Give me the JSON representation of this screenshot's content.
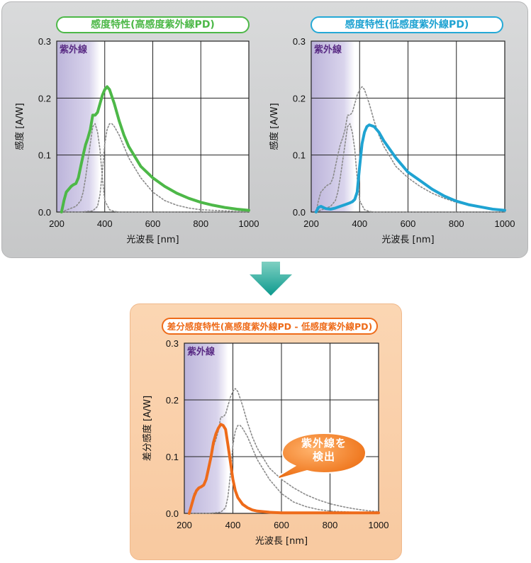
{
  "panels": {
    "top_left": {
      "title": "感度特性(高感度紫外線PD)"
    },
    "top_right": {
      "title": "感度特性(低感度紫外線PD)"
    },
    "bottom": {
      "title": "差分感度特性(高感度紫外線PD - 低感度紫外線PD)"
    }
  },
  "callout": {
    "line1": "紫外線を",
    "line2": "検出"
  },
  "colors": {
    "green": "#4db848",
    "blue": "#1fa3d2",
    "orange": "#ee6b1a",
    "uv_band": "#c9c3e0",
    "uv_label": "#5a2c85",
    "arrow": "#1aa39a"
  },
  "chart_data": [
    {
      "type": "line",
      "title": "感度特性(高感度紫外線PD)",
      "xlabel": "光波長 [nm]",
      "ylabel": "感度 [A/W]",
      "xlim": [
        200,
        1000
      ],
      "ylim": [
        0,
        0.3
      ],
      "xticks": [
        "200",
        "400",
        "600",
        "800",
        "1000"
      ],
      "yticks": [
        "0.0",
        "0.1",
        "0.2",
        "0.3"
      ],
      "grid": true,
      "uv_band": {
        "from": 200,
        "to": 380,
        "label": "紫外線"
      },
      "series": [
        {
          "style": "solid",
          "color": "green",
          "x": [
            220,
            230,
            240,
            250,
            260,
            270,
            280,
            290,
            300,
            310,
            320,
            330,
            340,
            350,
            360,
            370,
            380,
            390,
            400,
            410,
            420,
            440,
            460,
            480,
            500,
            550,
            600,
            650,
            700,
            750,
            800,
            850,
            900,
            950,
            1000
          ],
          "y": [
            0.0,
            0.02,
            0.035,
            0.04,
            0.045,
            0.048,
            0.05,
            0.06,
            0.08,
            0.1,
            0.118,
            0.13,
            0.145,
            0.17,
            0.17,
            0.175,
            0.19,
            0.205,
            0.215,
            0.22,
            0.215,
            0.19,
            0.16,
            0.135,
            0.115,
            0.08,
            0.06,
            0.045,
            0.033,
            0.024,
            0.017,
            0.012,
            0.008,
            0.005,
            0.003
          ]
        },
        {
          "style": "dotted",
          "color": "gray",
          "x": [
            220,
            250,
            280,
            300,
            310,
            320,
            330,
            340,
            350,
            360,
            370,
            380,
            390,
            400,
            420,
            440,
            460,
            480,
            500,
            550,
            600,
            700,
            800,
            900,
            1000
          ],
          "y": [
            0.0,
            0.005,
            0.01,
            0.02,
            0.035,
            0.06,
            0.09,
            0.12,
            0.15,
            0.155,
            0.14,
            0.11,
            0.06,
            0.02,
            0.004,
            0.001,
            0.0,
            0.0,
            0.0,
            0.0,
            0.0,
            0.0,
            0.0,
            0.0,
            0.0
          ]
        },
        {
          "style": "dotted",
          "color": "gray",
          "x": [
            220,
            300,
            350,
            370,
            380,
            390,
            400,
            410,
            420,
            430,
            440,
            460,
            480,
            500,
            550,
            600,
            650,
            700,
            750,
            800,
            850,
            900,
            950,
            1000
          ],
          "y": [
            0.0,
            0.0,
            0.002,
            0.01,
            0.03,
            0.07,
            0.12,
            0.145,
            0.155,
            0.155,
            0.15,
            0.135,
            0.115,
            0.095,
            0.06,
            0.035,
            0.02,
            0.012,
            0.007,
            0.004,
            0.003,
            0.002,
            0.001,
            0.001
          ]
        }
      ]
    },
    {
      "type": "line",
      "title": "感度特性(低感度紫外線PD)",
      "xlabel": "光波長 [nm]",
      "ylabel": "感度 [A/W]",
      "xlim": [
        200,
        1000
      ],
      "ylim": [
        0,
        0.3
      ],
      "xticks": [
        "200",
        "400",
        "600",
        "800",
        "1000"
      ],
      "yticks": [
        "0.0",
        "0.1",
        "0.2",
        "0.3"
      ],
      "grid": true,
      "uv_band": {
        "from": 200,
        "to": 380,
        "label": "紫外線"
      },
      "series": [
        {
          "style": "solid",
          "color": "blue",
          "x": [
            220,
            230,
            240,
            260,
            280,
            300,
            320,
            340,
            360,
            370,
            380,
            390,
            400,
            410,
            420,
            430,
            440,
            460,
            480,
            500,
            550,
            600,
            650,
            700,
            750,
            800,
            850,
            900,
            950,
            1000
          ],
          "y": [
            0.0,
            0.008,
            0.01,
            0.006,
            0.005,
            0.007,
            0.01,
            0.013,
            0.016,
            0.018,
            0.022,
            0.035,
            0.08,
            0.12,
            0.14,
            0.15,
            0.153,
            0.15,
            0.14,
            0.125,
            0.095,
            0.07,
            0.055,
            0.04,
            0.028,
            0.019,
            0.013,
            0.009,
            0.005,
            0.003
          ]
        },
        {
          "style": "dotted",
          "color": "gray",
          "x": [
            220,
            230,
            240,
            250,
            260,
            270,
            280,
            290,
            300,
            310,
            320,
            330,
            340,
            350,
            360,
            370,
            380,
            390,
            400,
            410,
            420,
            440,
            460,
            480,
            500,
            550,
            600,
            650,
            700,
            750,
            800,
            850,
            900,
            950,
            1000
          ],
          "y": [
            0.0,
            0.02,
            0.035,
            0.04,
            0.045,
            0.048,
            0.05,
            0.06,
            0.08,
            0.1,
            0.118,
            0.13,
            0.145,
            0.17,
            0.17,
            0.175,
            0.19,
            0.205,
            0.215,
            0.22,
            0.215,
            0.19,
            0.16,
            0.135,
            0.115,
            0.08,
            0.06,
            0.045,
            0.033,
            0.024,
            0.017,
            0.012,
            0.008,
            0.005,
            0.003
          ]
        },
        {
          "style": "dotted",
          "color": "gray",
          "x": [
            220,
            250,
            280,
            300,
            310,
            320,
            330,
            340,
            350,
            360,
            370,
            380,
            390,
            400,
            420,
            440,
            460,
            480,
            500,
            550,
            600,
            700,
            800,
            900,
            1000
          ],
          "y": [
            0.0,
            0.005,
            0.01,
            0.02,
            0.035,
            0.06,
            0.09,
            0.12,
            0.15,
            0.155,
            0.14,
            0.11,
            0.06,
            0.02,
            0.004,
            0.001,
            0.0,
            0.0,
            0.0,
            0.0,
            0.0,
            0.0,
            0.0,
            0.0,
            0.0
          ]
        }
      ]
    },
    {
      "type": "line",
      "title": "差分感度特性(高感度紫外線PD - 低感度紫外線PD)",
      "xlabel": "光波長 [nm]",
      "ylabel": "差分感度 [A/W]",
      "xlim": [
        200,
        1000
      ],
      "ylim": [
        0,
        0.3
      ],
      "xticks": [
        "200",
        "400",
        "600",
        "800",
        "1000"
      ],
      "yticks": [
        "0.0",
        "0.1",
        "0.2",
        "0.3"
      ],
      "grid": true,
      "uv_band": {
        "from": 200,
        "to": 380,
        "label": "紫外線"
      },
      "series": [
        {
          "style": "solid",
          "color": "orange",
          "x": [
            220,
            230,
            240,
            250,
            260,
            270,
            280,
            290,
            300,
            310,
            320,
            330,
            340,
            350,
            360,
            370,
            380,
            390,
            400,
            410,
            420,
            440,
            460,
            480,
            500,
            550,
            600,
            700,
            800,
            900,
            1000
          ],
          "y": [
            0.0,
            0.015,
            0.03,
            0.04,
            0.045,
            0.047,
            0.05,
            0.06,
            0.08,
            0.1,
            0.125,
            0.14,
            0.15,
            0.157,
            0.155,
            0.148,
            0.12,
            0.09,
            0.06,
            0.04,
            0.028,
            0.016,
            0.01,
            0.006,
            0.004,
            0.002,
            0.001,
            0.001,
            0.001,
            0.001,
            0.001
          ]
        },
        {
          "style": "dotted",
          "color": "gray",
          "x": [
            220,
            230,
            240,
            250,
            260,
            270,
            280,
            290,
            300,
            310,
            320,
            330,
            340,
            350,
            360,
            370,
            380,
            390,
            400,
            410,
            420,
            440,
            460,
            480,
            500,
            550,
            600,
            650,
            700,
            750,
            800,
            850,
            900,
            950,
            1000
          ],
          "y": [
            0.0,
            0.02,
            0.035,
            0.04,
            0.045,
            0.048,
            0.05,
            0.06,
            0.08,
            0.1,
            0.118,
            0.13,
            0.145,
            0.17,
            0.17,
            0.175,
            0.19,
            0.205,
            0.215,
            0.22,
            0.215,
            0.19,
            0.16,
            0.135,
            0.115,
            0.08,
            0.06,
            0.045,
            0.033,
            0.024,
            0.017,
            0.012,
            0.008,
            0.005,
            0.003
          ]
        },
        {
          "style": "dotted",
          "color": "gray",
          "x": [
            220,
            300,
            350,
            370,
            380,
            390,
            400,
            410,
            420,
            430,
            440,
            460,
            480,
            500,
            550,
            600,
            650,
            700,
            750,
            800,
            850,
            900,
            950,
            1000
          ],
          "y": [
            0.0,
            0.0,
            0.002,
            0.01,
            0.03,
            0.07,
            0.12,
            0.145,
            0.155,
            0.155,
            0.15,
            0.135,
            0.115,
            0.095,
            0.06,
            0.035,
            0.02,
            0.012,
            0.007,
            0.004,
            0.003,
            0.002,
            0.001,
            0.001
          ]
        }
      ]
    }
  ]
}
